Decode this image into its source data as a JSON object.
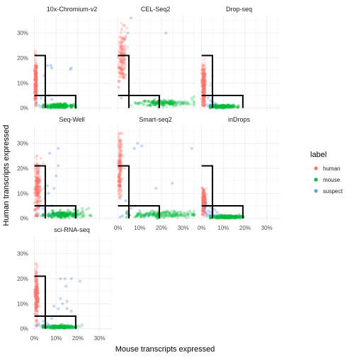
{
  "chart_data": {
    "type": "scatter",
    "layout": "faceted 3x3 grid",
    "xlabel": "Mouse transcripts expressed",
    "ylabel": "Human transcripts expressed",
    "x_ticks": [
      "0%",
      "10%",
      "20%",
      "30%"
    ],
    "y_ticks": [
      "0%",
      "10%",
      "20%",
      "30%"
    ],
    "x_tick_values": [
      0,
      10,
      20,
      30
    ],
    "y_tick_values": [
      0,
      10,
      20,
      30
    ],
    "xlim": [
      -1.5,
      36
    ],
    "ylim": [
      -1.5,
      37
    ],
    "grid": true,
    "legend": {
      "title": "label",
      "position": "right",
      "entries": [
        {
          "name": "human",
          "color": "#F8766D"
        },
        {
          "name": "mouse",
          "color": "#00BA38"
        },
        {
          "name": "suspect",
          "color": "#619CFF"
        }
      ]
    },
    "thresholds": {
      "human_box": {
        "x": [
          0,
          5
        ],
        "y": [
          5,
          21
        ]
      },
      "mouse_box": {
        "x": [
          5,
          19
        ],
        "y": [
          0,
          5
        ]
      }
    },
    "panels": [
      {
        "name": "10x-Chromium-v2",
        "series": [
          {
            "name": "human",
            "cluster": {
              "x_mean": 0.6,
              "x_sd": 0.25,
              "y_mean": 10,
              "y_sd": 4.5,
              "y_max": 21
            },
            "points": [
              [
                0.5,
                23
              ],
              [
                0.7,
                21.5
              ],
              [
                0.3,
                22
              ],
              [
                1.2,
                16
              ],
              [
                0.8,
                18
              ]
            ]
          },
          {
            "name": "mouse",
            "cluster": {
              "x_mean": 11,
              "x_sd": 3.5,
              "y_mean": 0.8,
              "y_sd": 0.4,
              "x_max": 19
            },
            "points": [
              [
                14,
                1.4
              ],
              [
                16,
                1.2
              ],
              [
                12,
                1.6
              ]
            ]
          },
          {
            "name": "suspect",
            "points": [
              [
                6,
                17
              ],
              [
                7.5,
                17
              ],
              [
                8,
                16
              ],
              [
                17,
                16
              ],
              [
                16.5,
                15.5
              ],
              [
                4.5,
                13
              ],
              [
                6.5,
                5
              ],
              [
                3,
                4
              ],
              [
                1,
                2
              ],
              [
                2,
                1
              ],
              [
                5,
                3
              ],
              [
                8,
                3.5
              ],
              [
                3,
                0.5
              ]
            ]
          }
        ]
      },
      {
        "name": "CEL-Seq2",
        "series": [
          {
            "name": "human",
            "cluster": {
              "x_mean": 2,
              "x_sd": 1,
              "y_mean": 21,
              "y_sd": 5,
              "y_max": 34
            },
            "points": [
              [
                3,
                33
              ],
              [
                4,
                32
              ],
              [
                2.5,
                28
              ],
              [
                1,
                14
              ],
              [
                2,
                12
              ]
            ]
          },
          {
            "name": "mouse",
            "cluster": {
              "x_mean": 22,
              "x_sd": 6,
              "y_mean": 2,
              "y_sd": 0.6,
              "x_max": 35
            },
            "points": [
              [
                34,
                4
              ],
              [
                35,
                4.5
              ],
              [
                6,
                1
              ],
              [
                9,
                1.5
              ],
              [
                8,
                2
              ]
            ]
          },
          {
            "name": "suspect",
            "points": [
              [
                6,
                36
              ],
              [
                22,
                30
              ],
              [
                4.5,
                30
              ],
              [
                28,
                2.5
              ],
              [
                1.5,
                4
              ]
            ]
          }
        ]
      },
      {
        "name": "Drop-seq",
        "series": [
          {
            "name": "human",
            "cluster": {
              "x_mean": 0.9,
              "x_sd": 0.35,
              "y_mean": 9,
              "y_sd": 4.5,
              "y_max": 20
            },
            "points": [
              [
                5,
                13
              ],
              [
                4.5,
                10
              ],
              [
                4,
                9
              ],
              [
                1.8,
                16
              ]
            ]
          },
          {
            "name": "mouse",
            "cluster": {
              "x_mean": 9,
              "x_sd": 3.5,
              "y_mean": 0.6,
              "y_sd": 0.3,
              "x_max": 17
            },
            "points": [
              [
                14,
                0.8
              ],
              [
                16,
                0.6
              ]
            ]
          },
          {
            "name": "suspect",
            "points": [
              [
                3,
                4
              ],
              [
                4,
                3
              ],
              [
                5,
                2.5
              ],
              [
                6,
                2
              ],
              [
                7,
                1.5
              ],
              [
                4,
                1
              ],
              [
                2,
                1.5
              ],
              [
                5,
                0.5
              ],
              [
                3,
                0.8
              ]
            ]
          }
        ]
      },
      {
        "name": "Seq-Well",
        "series": [
          {
            "name": "human",
            "cluster": {
              "x_mean": 1.4,
              "x_sd": 0.6,
              "y_mean": 13,
              "y_sd": 5.5,
              "y_max": 25
            },
            "points": [
              [
                3,
                24
              ],
              [
                4,
                22
              ],
              [
                4.2,
                12
              ],
              [
                5,
                10
              ],
              [
                4.5,
                8
              ]
            ]
          },
          {
            "name": "mouse",
            "cluster": {
              "x_mean": 14,
              "x_sd": 5,
              "y_mean": 1.4,
              "y_sd": 0.7,
              "x_max": 26
            },
            "points": [
              [
                24,
                3.5
              ],
              [
                25,
                4
              ],
              [
                22,
                4
              ],
              [
                20,
                3
              ]
            ]
          },
          {
            "name": "suspect",
            "points": [
              [
                11,
                28
              ],
              [
                7,
                26
              ],
              [
                11,
                21
              ],
              [
                10,
                17
              ],
              [
                9,
                12
              ],
              [
                6,
                13
              ],
              [
                6.5,
                10
              ],
              [
                8,
                5
              ],
              [
                4,
                4
              ],
              [
                2,
                5
              ],
              [
                5,
                3
              ],
              [
                7,
                2
              ],
              [
                3,
                1
              ],
              [
                1,
                2
              ],
              [
                9,
                1
              ],
              [
                11,
                2
              ]
            ]
          }
        ]
      },
      {
        "name": "Smart-seq2",
        "series": [
          {
            "name": "human",
            "cluster": {
              "x_mean": 0.8,
              "x_sd": 0.4,
              "y_mean": 22,
              "y_sd": 6,
              "y_max": 34
            },
            "points": [
              [
                2,
                34
              ],
              [
                2.5,
                25
              ],
              [
                3,
                20
              ]
            ]
          },
          {
            "name": "mouse",
            "cluster": {
              "x_mean": 22,
              "x_sd": 7,
              "y_mean": 1.5,
              "y_sd": 0.7,
              "x_max": 35
            },
            "points": [
              [
                34,
                2
              ],
              [
                33,
                3
              ]
            ]
          },
          {
            "name": "suspect",
            "points": [
              [
                9,
                30
              ],
              [
                7.5,
                28
              ],
              [
                11,
                29
              ],
              [
                34,
                28
              ],
              [
                25,
                14
              ],
              [
                17.5,
                12
              ],
              [
                8,
                5
              ],
              [
                3.5,
                7
              ],
              [
                6,
                4
              ],
              [
                10,
                3
              ],
              [
                2,
                1
              ],
              [
                4,
                2
              ],
              [
                1,
                0.5
              ],
              [
                12,
                1
              ],
              [
                15,
                1.5
              ],
              [
                5,
                1
              ]
            ]
          }
        ]
      },
      {
        "name": "inDrops",
        "series": [
          {
            "name": "human",
            "cluster": {
              "x_mean": 1.1,
              "x_sd": 0.4,
              "y_mean": 7,
              "y_sd": 2.5,
              "y_max": 13
            },
            "points": [
              [
                2,
                12
              ],
              [
                0.8,
                11.5
              ]
            ]
          },
          {
            "name": "mouse",
            "cluster": {
              "x_mean": 11,
              "x_sd": 4,
              "y_mean": 0.6,
              "y_sd": 0.3,
              "x_max": 19
            },
            "points": [
              [
                18,
                0.8
              ],
              [
                17,
                1.2
              ]
            ]
          },
          {
            "name": "suspect",
            "points": [
              [
                2,
                6
              ],
              [
                3,
                5
              ],
              [
                4,
                4.5
              ],
              [
                5,
                4
              ],
              [
                6,
                3.5
              ],
              [
                3,
                3
              ],
              [
                4,
                2.5
              ],
              [
                2,
                2
              ],
              [
                5,
                2
              ],
              [
                7,
                2.5
              ],
              [
                3,
                1.5
              ],
              [
                6,
                1
              ],
              [
                1.5,
                3.5
              ],
              [
                4,
                1
              ],
              [
                2.5,
                0.8
              ],
              [
                8,
                1.5
              ],
              [
                5,
                3
              ]
            ]
          }
        ]
      },
      {
        "name": "sci-RNA-seq",
        "series": [
          {
            "name": "human",
            "cluster": {
              "x_mean": 0.9,
              "x_sd": 0.35,
              "y_mean": 14,
              "y_sd": 5,
              "y_max": 26
            },
            "points": [
              [
                1,
                26
              ],
              [
                1.5,
                25
              ],
              [
                0.8,
                23
              ]
            ]
          },
          {
            "name": "mouse",
            "cluster": {
              "x_mean": 11,
              "x_sd": 4,
              "y_mean": 0.7,
              "y_sd": 0.3,
              "x_max": 19
            },
            "points": [
              [
                20,
                1.2
              ],
              [
                22,
                1.5
              ],
              [
                21,
                0.8
              ]
            ]
          },
          {
            "name": "suspect",
            "points": [
              [
                17,
                20
              ],
              [
                14,
                20
              ],
              [
                12,
                20
              ],
              [
                21,
                19
              ],
              [
                14.5,
                17
              ],
              [
                12,
                12
              ],
              [
                15,
                11
              ],
              [
                13,
                10
              ],
              [
                15,
                8
              ],
              [
                17,
                7
              ],
              [
                9,
                9
              ],
              [
                11,
                8
              ],
              [
                8,
                4
              ],
              [
                4,
                3
              ],
              [
                2,
                2
              ],
              [
                3,
                1
              ],
              [
                1,
                1.5
              ],
              [
                6,
                2
              ],
              [
                5,
                1
              ],
              [
                7,
                1.2
              ]
            ]
          }
        ]
      }
    ]
  }
}
